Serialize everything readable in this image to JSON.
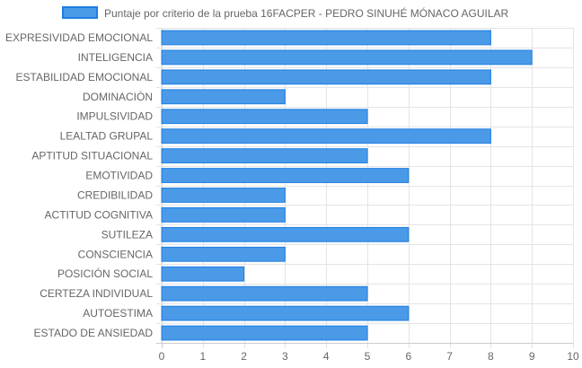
{
  "chart_data": {
    "type": "bar",
    "orientation": "horizontal",
    "title": "",
    "xlabel": "",
    "ylabel": "",
    "legend_position": "top",
    "grid": true,
    "xlim": [
      0,
      10
    ],
    "ticks": [
      "0",
      "1",
      "2",
      "3",
      "4",
      "5",
      "6",
      "7",
      "8",
      "9",
      "10"
    ],
    "categories": [
      "EXPRESIVIDAD EMOCIONAL",
      "INTELIGENCIA",
      "ESTABILIDAD EMOCIONAL",
      "DOMINACIÓN",
      "IMPULSIVIDAD",
      "LEALTAD GRUPAL",
      "APTITUD SITUACIONAL",
      "EMOTIVIDAD",
      "CREDIBILIDAD",
      "ACTITUD COGNITIVA",
      "SUTILEZA",
      "CONSCIENCIA",
      "POSICIÓN SOCIAL",
      "CERTEZA INDIVIDUAL",
      "AUTOESTIMA",
      "ESTADO DE ANSIEDAD"
    ],
    "series": [
      {
        "name": "Puntaje por criterio de la prueba 16FACPER - PEDRO SINUHÉ MÓNACO AGUILAR",
        "color": "#4a9ae8",
        "border_color": "#1e7ee0",
        "values": [
          8,
          9,
          8,
          3,
          5,
          8,
          5,
          6,
          3,
          3,
          6,
          3,
          2,
          5,
          6,
          5
        ]
      }
    ]
  }
}
